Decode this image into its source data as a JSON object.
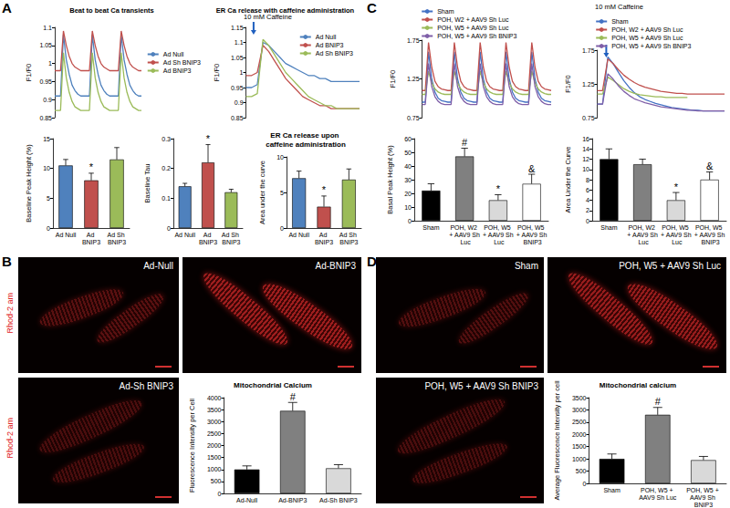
{
  "panel_labels": [
    "A",
    "B",
    "C",
    "D"
  ],
  "micrographs": [
    {
      "stain": "Rhod-2 am",
      "images": [
        "Ad-Null",
        "Ad-BNIP3",
        "Ad-Sh BNIP3"
      ]
    },
    {
      "images": [
        "Sham",
        "POH, W5 + AAV9 Sh Luc",
        "POH, W5 + AAV9 Sh BNIP3"
      ]
    }
  ],
  "chart_data": [
    {
      "type": "line",
      "title": "Beat to beat Ca transients",
      "y_label": "F1/F0",
      "legend": "right",
      "tick_labels": "y",
      "xlim": [
        0,
        30
      ],
      "ylim": [
        0.85,
        1.1
      ],
      "yticks": [
        0.85,
        0.9,
        0.95,
        1,
        1.05,
        1.1
      ],
      "x": [
        0,
        1,
        2,
        3,
        4,
        5,
        6,
        7,
        8,
        9,
        10,
        11,
        12,
        13,
        14,
        15,
        16,
        17,
        18,
        19,
        20,
        21,
        22,
        23,
        24,
        25,
        26,
        27,
        28,
        29,
        30
      ],
      "series": [
        {
          "name": "Ad Null",
          "color": "#4f81bd",
          "values": [
            0.91,
            0.91,
            0.91,
            1.08,
            1.01,
            0.97,
            0.94,
            0.925,
            0.915,
            0.91,
            0.91,
            0.91,
            0.91,
            1.08,
            1.01,
            0.97,
            0.94,
            0.925,
            0.915,
            0.91,
            0.91,
            0.91,
            0.91,
            1.08,
            1.01,
            0.97,
            0.94,
            0.925,
            0.915,
            0.91,
            0.91
          ]
        },
        {
          "name": "Ad Sh BNIP3",
          "color": "#c0504d",
          "values": [
            0.98,
            0.98,
            0.98,
            1.09,
            1.05,
            1.02,
            1.0,
            0.99,
            0.985,
            0.98,
            0.98,
            0.98,
            0.98,
            1.09,
            1.05,
            1.02,
            1.0,
            0.99,
            0.985,
            0.98,
            0.98,
            0.98,
            0.98,
            1.09,
            1.05,
            1.02,
            1.0,
            0.99,
            0.985,
            0.98,
            0.98
          ]
        },
        {
          "name": "Ad BNIP3",
          "color": "#9bbb59",
          "values": [
            0.87,
            0.87,
            0.87,
            1.03,
            0.96,
            0.92,
            0.895,
            0.88,
            0.875,
            0.87,
            0.87,
            0.87,
            0.87,
            1.03,
            0.96,
            0.92,
            0.895,
            0.88,
            0.875,
            0.87,
            0.87,
            0.87,
            0.87,
            1.03,
            0.96,
            0.92,
            0.895,
            0.88,
            0.875,
            0.87,
            0.87
          ]
        }
      ]
    },
    {
      "type": "line",
      "title": "ER Ca release with caffeine administration",
      "annotation": "10 mM Caffeine",
      "y_label": "F1/F0",
      "legend": "top-right",
      "tick_labels": "y",
      "xlim": [
        0,
        20
      ],
      "ylim": [
        0.85,
        1.15
      ],
      "yticks": [
        0.85,
        0.9,
        0.95,
        1,
        1.05,
        1.1,
        1.15
      ],
      "x": [
        0,
        1,
        2,
        3,
        4,
        5,
        6,
        7,
        8,
        9,
        10,
        11,
        12,
        13,
        14,
        15,
        16,
        17,
        18,
        19,
        20
      ],
      "series": [
        {
          "name": "Ad Null",
          "color": "#4f81bd",
          "values": [
            0.95,
            0.95,
            0.96,
            1.1,
            1.09,
            1.07,
            1.05,
            1.03,
            1.02,
            1.01,
            1.0,
            0.99,
            0.99,
            0.98,
            0.98,
            0.97,
            0.97,
            0.97,
            0.97,
            0.97,
            0.97
          ]
        },
        {
          "name": "Ad BNIP3",
          "color": "#c0504d",
          "values": [
            0.99,
            0.99,
            1.0,
            1.09,
            1.07,
            1.04,
            1.01,
            0.98,
            0.96,
            0.94,
            0.92,
            0.91,
            0.9,
            0.89,
            0.89,
            0.88,
            0.88,
            0.88,
            0.88,
            0.88,
            0.88
          ]
        },
        {
          "name": "Ad Sh BNIP3",
          "color": "#9bbb59",
          "values": [
            0.92,
            0.92,
            0.93,
            1.11,
            1.09,
            1.06,
            1.03,
            1.0,
            0.98,
            0.96,
            0.94,
            0.92,
            0.91,
            0.9,
            0.89,
            0.89,
            0.88,
            0.88,
            0.88,
            0.88,
            0.88
          ]
        }
      ]
    },
    {
      "type": "bar",
      "y_label": "Baseline Peak Height (%)",
      "categories": [
        "Ad Null",
        "Ad BNIP3",
        "Ad Sh BNIP3"
      ],
      "values": [
        10.5,
        8,
        11.5
      ],
      "errors": [
        1,
        1.2,
        2
      ],
      "marks": [
        null,
        "*",
        null
      ],
      "colors": [
        "#4f81bd",
        "#c0504d",
        "#9bbb59"
      ],
      "ylim": [
        0,
        15
      ],
      "yticks": [
        0,
        5,
        10,
        15
      ]
    },
    {
      "type": "bar",
      "y_label": "Baseline Tau",
      "categories": [
        "Ad Null",
        "Ad BNIP3",
        "Ad Sh BNIP3"
      ],
      "values": [
        0.14,
        0.22,
        0.12
      ],
      "errors": [
        0.01,
        0.06,
        0.01
      ],
      "marks": [
        null,
        "*",
        null
      ],
      "colors": [
        "#4f81bd",
        "#c0504d",
        "#9bbb59"
      ],
      "ylim": [
        0,
        0.3
      ],
      "yticks": [
        0,
        0.1,
        0.2,
        0.3
      ]
    },
    {
      "type": "bar",
      "title": "ER Ca release upon caffeine administration",
      "y_label": "Area under the curve",
      "categories": [
        "Ad Null",
        "Ad BNIP3",
        "Ad Sh BNIP3"
      ],
      "values": [
        7,
        3,
        6.8
      ],
      "errors": [
        1,
        1.5,
        1.5
      ],
      "marks": [
        null,
        "*",
        null
      ],
      "colors": [
        "#4f81bd",
        "#c0504d",
        "#9bbb59"
      ],
      "ylim": [
        0,
        10
      ],
      "yticks": [
        0,
        5,
        10
      ]
    },
    {
      "type": "line",
      "y_label": "F1/F0",
      "legend": "top",
      "tick_labels": "y",
      "xlim": [
        0,
        40
      ],
      "ylim": [
        0.75,
        1.75
      ],
      "yticks": [
        0.75,
        1.25,
        1.75
      ],
      "x": [
        0,
        1,
        2,
        3,
        4,
        5,
        6,
        7,
        8,
        9,
        10,
        11,
        12,
        13,
        14,
        15,
        16,
        17,
        18,
        19,
        20,
        21,
        22,
        23,
        24,
        25,
        26,
        27,
        28,
        29,
        30,
        31,
        32,
        33,
        34,
        35,
        36,
        37,
        38,
        39,
        40
      ],
      "series": [
        {
          "name": "Sham",
          "color": "#4472c4",
          "values": [
            0.95,
            0.95,
            1.6,
            1.25,
            1.08,
            1.0,
            0.97,
            0.96,
            0.95,
            0.95,
            1.6,
            1.25,
            1.08,
            1.0,
            0.97,
            0.96,
            0.95,
            0.95,
            1.6,
            1.25,
            1.08,
            1.0,
            0.97,
            0.96,
            0.95,
            0.95,
            1.6,
            1.25,
            1.08,
            1.0,
            0.97,
            0.96,
            0.95,
            0.95,
            1.6,
            1.25,
            1.08,
            1.0,
            0.97,
            0.96,
            0.95
          ]
        },
        {
          "name": "POH, W2 + AAV9 Sh Luc",
          "color": "#c0504d",
          "values": [
            1.1,
            1.1,
            1.72,
            1.4,
            1.22,
            1.15,
            1.12,
            1.11,
            1.1,
            1.1,
            1.72,
            1.4,
            1.22,
            1.15,
            1.12,
            1.11,
            1.1,
            1.1,
            1.72,
            1.4,
            1.22,
            1.15,
            1.12,
            1.11,
            1.1,
            1.1,
            1.72,
            1.4,
            1.22,
            1.15,
            1.12,
            1.11,
            1.1,
            1.1,
            1.72,
            1.4,
            1.22,
            1.15,
            1.12,
            1.11,
            1.1
          ]
        },
        {
          "name": "POH, W5 + AAV9 Sh Luc",
          "color": "#9bbb59",
          "values": [
            1.05,
            1.05,
            1.35,
            1.2,
            1.12,
            1.08,
            1.06,
            1.05,
            1.05,
            1.05,
            1.35,
            1.2,
            1.12,
            1.08,
            1.06,
            1.05,
            1.05,
            1.05,
            1.35,
            1.2,
            1.12,
            1.08,
            1.06,
            1.05,
            1.05,
            1.05,
            1.35,
            1.2,
            1.12,
            1.08,
            1.06,
            1.05,
            1.05,
            1.05,
            1.35,
            1.2,
            1.12,
            1.08,
            1.06,
            1.05,
            1.05
          ]
        },
        {
          "name": "POH, W5 + AAV9 Sh BNIP3",
          "color": "#7f5fa8",
          "values": [
            0.92,
            0.92,
            1.45,
            1.15,
            1.02,
            0.96,
            0.93,
            0.92,
            0.92,
            0.92,
            1.45,
            1.15,
            1.02,
            0.96,
            0.93,
            0.92,
            0.92,
            0.92,
            1.45,
            1.15,
            1.02,
            0.96,
            0.93,
            0.92,
            0.92,
            0.92,
            1.45,
            1.15,
            1.02,
            0.96,
            0.93,
            0.92,
            0.92,
            0.92,
            1.45,
            1.15,
            1.02,
            0.96,
            0.93,
            0.92,
            0.92
          ]
        }
      ]
    },
    {
      "type": "line",
      "annotation": "10 mM Caffeine",
      "y_label": "F1/F0",
      "legend": "top",
      "tick_labels": "y",
      "xlim": [
        0,
        24
      ],
      "ylim": [
        0.75,
        1.75
      ],
      "yticks": [
        0.75,
        1.25,
        1.75
      ],
      "x": [
        0,
        1,
        2,
        3,
        4,
        5,
        6,
        7,
        8,
        9,
        10,
        11,
        12,
        13,
        14,
        15,
        16,
        17,
        18,
        19,
        20,
        21,
        22,
        23,
        24
      ],
      "series": [
        {
          "name": "Sham",
          "color": "#4472c4",
          "values": [
            0.95,
            0.95,
            1.65,
            1.55,
            1.42,
            1.3,
            1.2,
            1.12,
            1.06,
            1.02,
            0.99,
            0.96,
            0.94,
            0.92,
            0.9,
            0.89,
            0.88,
            0.87,
            0.86,
            0.86,
            0.85,
            0.85,
            0.85,
            0.85,
            0.85
          ]
        },
        {
          "name": "POH, W2 + AAV9 Sh Luc",
          "color": "#c0504d",
          "values": [
            1.15,
            1.15,
            1.62,
            1.55,
            1.46,
            1.38,
            1.32,
            1.27,
            1.23,
            1.2,
            1.18,
            1.16,
            1.14,
            1.13,
            1.12,
            1.11,
            1.11,
            1.1,
            1.1,
            1.1,
            1.1,
            1.1,
            1.1,
            1.1,
            1.1
          ]
        },
        {
          "name": "POH, W5 + AAV9 Sh Luc",
          "color": "#9bbb59",
          "values": [
            1.1,
            1.1,
            1.35,
            1.3,
            1.24,
            1.18,
            1.14,
            1.11,
            1.09,
            1.08,
            1.07,
            1.06,
            1.06,
            1.05,
            1.05,
            1.05,
            1.05,
            1.05,
            null,
            null,
            null,
            null,
            null,
            null,
            null
          ]
        },
        {
          "name": "POH, W5 + AAV9 Sh BNIP3",
          "color": "#7f5fa8",
          "values": [
            0.95,
            0.95,
            1.4,
            1.32,
            1.22,
            1.14,
            1.08,
            1.03,
            1.0,
            0.97,
            0.95,
            0.93,
            0.91,
            0.9,
            0.89,
            0.88,
            0.87,
            0.86,
            0.86,
            0.85,
            0.85,
            0.85,
            0.85,
            0.85,
            0.85
          ]
        }
      ]
    },
    {
      "type": "bar",
      "y_label": "Basal Peak Height (%)",
      "categories": [
        "Sham",
        "POH, W2 + AAV9 Sh Luc",
        "POH, W5 + AAV9 Sh Luc",
        "POH, W5 + AAV9 Sh BNIP3"
      ],
      "values": [
        22,
        47,
        15,
        27
      ],
      "errors": [
        5,
        6,
        4,
        7
      ],
      "marks": [
        null,
        "#",
        "*",
        "&"
      ],
      "colors": [
        "#000000",
        "#808080",
        "#d9d9d9",
        "#ffffff"
      ],
      "ylim": [
        0,
        60
      ],
      "yticks": [
        0,
        10,
        20,
        30,
        40,
        50,
        60
      ]
    },
    {
      "type": "bar",
      "y_label": "Area Under the Curve",
      "categories": [
        "Sham",
        "POH, W2 + AAV9 Sh Luc",
        "POH, W5 + AAV9 Sh Luc",
        "POH, W5 + AAV9 Sh BNIP3"
      ],
      "values": [
        12,
        11,
        4,
        8
      ],
      "errors": [
        2,
        1,
        1.5,
        1.5
      ],
      "marks": [
        null,
        null,
        "*",
        "&"
      ],
      "colors": [
        "#000000",
        "#808080",
        "#d9d9d9",
        "#ffffff"
      ],
      "ylim": [
        0,
        16
      ],
      "yticks": [
        0,
        2,
        4,
        6,
        8,
        10,
        12,
        14,
        16
      ]
    },
    {
      "type": "bar",
      "title": "Mitochondrial Calcium",
      "y_label": "Fluorescence Intensity per Cell",
      "categories": [
        "Ad-Null",
        "Ad-BNIP3",
        "Ad-Sh BNIP3"
      ],
      "values": [
        1000,
        3450,
        1050
      ],
      "errors": [
        150,
        350,
        150
      ],
      "marks": [
        null,
        "#",
        null
      ],
      "colors": [
        "#000000",
        "#808080",
        "#d9d9d9"
      ],
      "ylim": [
        0,
        4000
      ],
      "yticks": [
        0,
        500,
        1000,
        1500,
        2000,
        2500,
        3000,
        3500,
        4000
      ]
    },
    {
      "type": "bar",
      "title": "Mitochondrial calcium",
      "y_label": "Average Fluorescence Intensity per cell",
      "categories": [
        "Sham",
        "POH, W5 + AAV9 Sh Luc",
        "POH, W5 + AAV9 Sh BNIP3"
      ],
      "values": [
        1000,
        2800,
        950
      ],
      "errors": [
        200,
        300,
        150
      ],
      "marks": [
        null,
        "#",
        null
      ],
      "colors": [
        "#000000",
        "#808080",
        "#d9d9d9"
      ],
      "ylim": [
        0,
        3500
      ],
      "yticks": [
        0,
        500,
        1000,
        1500,
        2000,
        2500,
        3000,
        3500
      ]
    }
  ]
}
